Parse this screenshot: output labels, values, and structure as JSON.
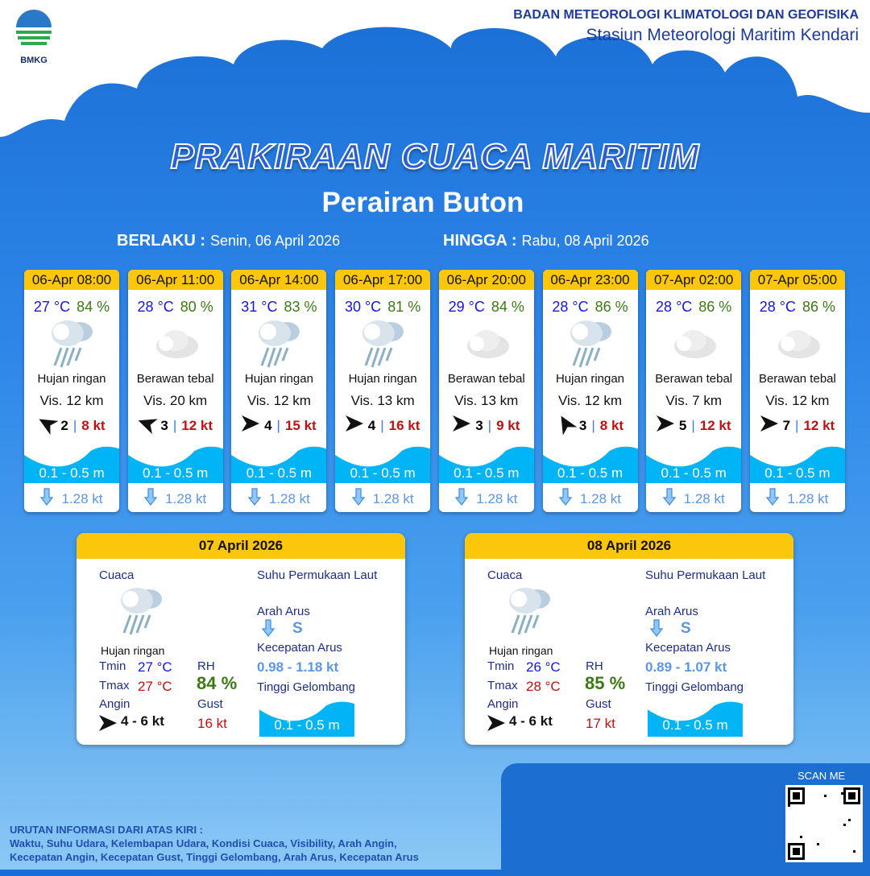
{
  "header": {
    "logo_text": "BMKG",
    "org_line1": "BADAN METEOROLOGI KLIMATOLOGI DAN GEOFISIKA",
    "org_line2": "Stasiun Meteorologi Maritim Kendari"
  },
  "title": "PRAKIRAAN CUACA MARITIM",
  "subtitle": "Perairan Buton",
  "validity": {
    "from_label": "BERLAKU :",
    "from_value": "Senin, 06 April 2026",
    "to_label": "HINGGA :",
    "to_value": "Rabu, 08 April 2026"
  },
  "forecasts": [
    {
      "time": "06-Apr 08:00",
      "temp": "27 °C",
      "rh": "84 %",
      "icon": "light-rain-icon",
      "condition": "Hujan ringan",
      "vis": "Vis.  12 km",
      "wind_dir_deg": -150,
      "wind": "2",
      "gust": "8 kt",
      "wave": "0.1 - 0.5 m",
      "current": "1.28 kt"
    },
    {
      "time": "06-Apr 11:00",
      "temp": "28 °C",
      "rh": "80 %",
      "icon": "overcast-cloud-icon",
      "condition": "Berawan tebal",
      "vis": "Vis. 20 km",
      "wind_dir_deg": -160,
      "wind": "3",
      "gust": "12 kt",
      "wave": "0.1 - 0.5 m",
      "current": "1.28 kt"
    },
    {
      "time": "06-Apr 14:00",
      "temp": "31 °C",
      "rh": "83 %",
      "icon": "light-rain-icon",
      "condition": "Hujan ringan",
      "vis": "Vis. 12 km",
      "wind_dir_deg": 0,
      "wind": "4",
      "gust": "15 kt",
      "wave": "0.1 - 0.5 m",
      "current": "1.28 kt"
    },
    {
      "time": "06-Apr 17:00",
      "temp": "30 °C",
      "rh": "81 %",
      "icon": "light-rain-icon",
      "condition": "Hujan ringan",
      "vis": "Vis.  13 km",
      "wind_dir_deg": 0,
      "wind": "4",
      "gust": "16 kt",
      "wave": "0.1 - 0.5 m",
      "current": "1.28 kt"
    },
    {
      "time": "06-Apr 20:00",
      "temp": "29 °C",
      "rh": "84 %",
      "icon": "overcast-cloud-icon",
      "condition": "Berawan tebal",
      "vis": "Vis. 13 km",
      "wind_dir_deg": 0,
      "wind": "3",
      "gust": "9 kt",
      "wave": "0.1 - 0.5 m",
      "current": "1.28 kt"
    },
    {
      "time": "06-Apr 23:00",
      "temp": "28 °C",
      "rh": "86 %",
      "icon": "light-rain-icon",
      "condition": "Hujan ringan",
      "vis": "Vis.  12 km",
      "wind_dir_deg": -120,
      "wind": "3",
      "gust": "8 kt",
      "wave": "0.1 - 0.5 m",
      "current": "1.28 kt"
    },
    {
      "time": "07-Apr 02:00",
      "temp": "28 °C",
      "rh": "86 %",
      "icon": "overcast-cloud-icon",
      "condition": "Berawan tebal",
      "vis": "Vis.  7 km",
      "wind_dir_deg": 0,
      "wind": "5",
      "gust": "12 kt",
      "wave": "0.1 - 0.5 m",
      "current": "1.28 kt"
    },
    {
      "time": "07-Apr 05:00",
      "temp": "28 °C",
      "rh": "86 %",
      "icon": "overcast-cloud-icon",
      "condition": "Berawan tebal",
      "vis": "Vis.  12 km",
      "wind_dir_deg": 0,
      "wind": "7",
      "gust": "12 kt",
      "wave": "0.1 - 0.5 m",
      "current": "1.28 kt"
    }
  ],
  "daily": [
    {
      "date": "07 April 2026",
      "cuaca_label": "Cuaca",
      "condition": "Hujan ringan",
      "tmin_label": "Tmin",
      "tmin": "27 °C",
      "tmax_label": "Tmax",
      "tmax": "27 °C",
      "rh_label": "RH",
      "rh": "84 %",
      "angin_label": "Angin",
      "angin": "4  - 6 kt",
      "gust_label": "Gust",
      "gust": "16 kt",
      "sst_label": "Suhu Permukaan Laut",
      "arah_label": "Arah Arus",
      "arah": "S",
      "kec_label": "Kecepatan Arus",
      "kec": "0.98  - 1.18 kt",
      "tinggi_label": "Tinggi Gelombang",
      "tinggi": "0.1 - 0.5 m"
    },
    {
      "date": "08 April 2026",
      "cuaca_label": "Cuaca",
      "condition": "Hujan ringan",
      "tmin_label": "Tmin",
      "tmin": "26 °C",
      "tmax_label": "Tmax",
      "tmax": "28 °C",
      "rh_label": "RH",
      "rh": "85 %",
      "angin_label": "Angin",
      "angin": "4  - 6 kt",
      "gust_label": "Gust",
      "gust": "17 kt",
      "sst_label": "Suhu Permukaan Laut",
      "arah_label": "Arah Arus",
      "arah": "S",
      "kec_label": "Kecepatan Arus",
      "kec": "0.89  - 1.07 kt",
      "tinggi_label": "Tinggi Gelombang",
      "tinggi": "0.1 - 0.5 m"
    }
  ],
  "footer": {
    "line1": "URUTAN INFORMASI DARI ATAS KIRI :",
    "line2": "Waktu, Suhu Udara, Kelembapan Udara, Kondisi Cuaca, Visibility, Arah Angin,",
    "line3": "Kecepatan Angin, Kecepatan Gust, Tinggi Gelombang, Arah Arus, Kecepatan Arus",
    "scan_label": "SCAN ME"
  },
  "colors": {
    "header_yellow": "#fcc70a",
    "temp_blue": "#1515e6",
    "rh_green": "#3b7a12",
    "gust_red": "#c21010",
    "wave_cyan": "#00b4f5"
  }
}
